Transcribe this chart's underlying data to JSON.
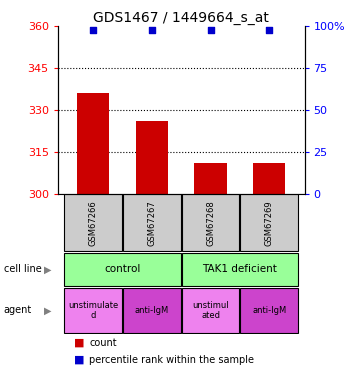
{
  "title": "GDS1467 / 1449664_s_at",
  "samples": [
    "GSM67266",
    "GSM67267",
    "GSM67268",
    "GSM67269"
  ],
  "counts": [
    336,
    326,
    311,
    311
  ],
  "percentiles": [
    98,
    98,
    98,
    98
  ],
  "ylim_left": [
    300,
    360
  ],
  "ylim_right": [
    0,
    100
  ],
  "yticks_left": [
    300,
    315,
    330,
    345,
    360
  ],
  "ytick_labels_right": [
    "0",
    "25",
    "50",
    "75",
    "100%"
  ],
  "yticks_right": [
    0,
    25,
    50,
    75,
    100
  ],
  "grid_lines": [
    315,
    330,
    345
  ],
  "bar_color": "#cc0000",
  "dot_color": "#0000cc",
  "bar_width": 0.55,
  "cell_line_labels": [
    "control",
    "TAK1 deficient"
  ],
  "cell_line_color": "#99ff99",
  "agent_labels": [
    "unstimulate\nd",
    "anti-IgM",
    "unstimul\nated",
    "anti-IgM"
  ],
  "agent_colors": [
    "#ee82ee",
    "#cc44cc",
    "#ee82ee",
    "#cc44cc"
  ],
  "sample_bg_color": "#cccccc",
  "legend_count_color": "#cc0000",
  "legend_percentile_color": "#0000cc",
  "title_fontsize": 10,
  "tick_fontsize": 8
}
